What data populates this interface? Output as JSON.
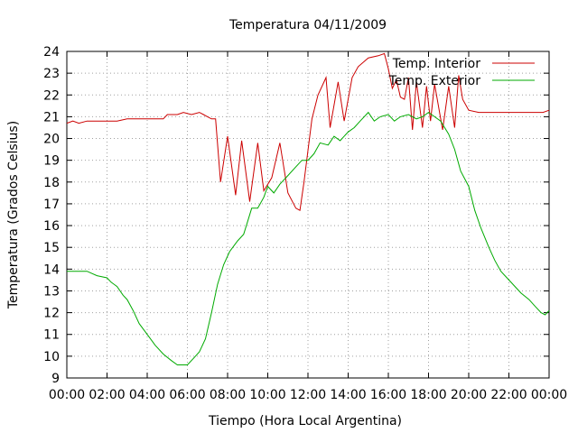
{
  "chart_data": {
    "type": "line",
    "title": "Temperatura 04/11/2009",
    "xlabel": "Tiempo (Hora Local Argentina)",
    "ylabel": "Temperatura (Grados Celsius)",
    "ylim": [
      9,
      24
    ],
    "xlim": [
      0,
      24
    ],
    "x_tick_labels": [
      "00:00",
      "02:00",
      "04:00",
      "06:00",
      "08:00",
      "10:00",
      "12:00",
      "14:00",
      "16:00",
      "18:00",
      "20:00",
      "22:00",
      "00:00"
    ],
    "y_ticks": [
      9,
      10,
      11,
      12,
      13,
      14,
      15,
      16,
      17,
      18,
      19,
      20,
      21,
      22,
      23,
      24
    ],
    "grid": true,
    "legend_position": "top-right",
    "series": [
      {
        "name": "Temp. Interior",
        "color": "#cc0000",
        "points": [
          [
            0,
            20.7
          ],
          [
            0.3,
            20.8
          ],
          [
            0.6,
            20.7
          ],
          [
            1,
            20.8
          ],
          [
            2,
            20.8
          ],
          [
            2.5,
            20.8
          ],
          [
            3,
            20.9
          ],
          [
            4,
            20.9
          ],
          [
            4.8,
            20.9
          ],
          [
            5,
            21.1
          ],
          [
            5.5,
            21.1
          ],
          [
            5.8,
            21.2
          ],
          [
            6.2,
            21.1
          ],
          [
            6.6,
            21.2
          ],
          [
            6.8,
            21.1
          ],
          [
            7.2,
            20.9
          ],
          [
            7.4,
            20.9
          ],
          [
            7.65,
            18.0
          ],
          [
            8.0,
            20.1
          ],
          [
            8.4,
            17.4
          ],
          [
            8.7,
            19.9
          ],
          [
            9.1,
            17.1
          ],
          [
            9.5,
            19.8
          ],
          [
            9.8,
            17.6
          ],
          [
            10.2,
            18.2
          ],
          [
            10.6,
            19.8
          ],
          [
            11.0,
            17.5
          ],
          [
            11.4,
            16.8
          ],
          [
            11.6,
            16.7
          ],
          [
            11.8,
            18.0
          ],
          [
            12.2,
            20.9
          ],
          [
            12.5,
            22.0
          ],
          [
            12.9,
            22.8
          ],
          [
            13.1,
            20.5
          ],
          [
            13.5,
            22.6
          ],
          [
            13.8,
            20.8
          ],
          [
            14.2,
            22.8
          ],
          [
            14.5,
            23.3
          ],
          [
            15,
            23.7
          ],
          [
            15.5,
            23.8
          ],
          [
            15.8,
            23.9
          ],
          [
            16.0,
            23.2
          ],
          [
            16.2,
            22.3
          ],
          [
            16.4,
            22.7
          ],
          [
            16.6,
            21.9
          ],
          [
            16.8,
            21.8
          ],
          [
            17.0,
            22.8
          ],
          [
            17.2,
            20.4
          ],
          [
            17.4,
            22.6
          ],
          [
            17.7,
            20.5
          ],
          [
            17.9,
            22.4
          ],
          [
            18.1,
            20.8
          ],
          [
            18.3,
            22.5
          ],
          [
            18.7,
            20.4
          ],
          [
            19.0,
            22.4
          ],
          [
            19.3,
            20.5
          ],
          [
            19.5,
            22.9
          ],
          [
            19.7,
            21.8
          ],
          [
            20.0,
            21.3
          ],
          [
            20.5,
            21.2
          ],
          [
            21,
            21.2
          ],
          [
            22,
            21.2
          ],
          [
            23,
            21.2
          ],
          [
            23.7,
            21.2
          ],
          [
            24,
            21.3
          ]
        ]
      },
      {
        "name": "Temp. Exterior",
        "color": "#00aa00",
        "points": [
          [
            0,
            13.9
          ],
          [
            0.5,
            13.9
          ],
          [
            1,
            13.9
          ],
          [
            1.5,
            13.7
          ],
          [
            2,
            13.6
          ],
          [
            2.2,
            13.4
          ],
          [
            2.5,
            13.2
          ],
          [
            2.8,
            12.8
          ],
          [
            3,
            12.6
          ],
          [
            3.3,
            12.1
          ],
          [
            3.6,
            11.5
          ],
          [
            4,
            11.0
          ],
          [
            4.4,
            10.5
          ],
          [
            4.8,
            10.1
          ],
          [
            5.2,
            9.8
          ],
          [
            5.5,
            9.6
          ],
          [
            5.8,
            9.6
          ],
          [
            6.0,
            9.6
          ],
          [
            6.3,
            9.9
          ],
          [
            6.6,
            10.2
          ],
          [
            6.9,
            10.8
          ],
          [
            7.2,
            12.0
          ],
          [
            7.5,
            13.3
          ],
          [
            7.8,
            14.2
          ],
          [
            8.1,
            14.8
          ],
          [
            8.5,
            15.3
          ],
          [
            8.8,
            15.6
          ],
          [
            9.0,
            16.2
          ],
          [
            9.2,
            16.8
          ],
          [
            9.5,
            16.8
          ],
          [
            9.8,
            17.3
          ],
          [
            10.0,
            17.8
          ],
          [
            10.3,
            17.5
          ],
          [
            10.6,
            17.9
          ],
          [
            11.0,
            18.3
          ],
          [
            11.4,
            18.7
          ],
          [
            11.7,
            19.0
          ],
          [
            12.0,
            19.0
          ],
          [
            12.3,
            19.3
          ],
          [
            12.6,
            19.8
          ],
          [
            13.0,
            19.7
          ],
          [
            13.3,
            20.1
          ],
          [
            13.6,
            19.9
          ],
          [
            14.0,
            20.3
          ],
          [
            14.3,
            20.5
          ],
          [
            14.6,
            20.8
          ],
          [
            15.0,
            21.2
          ],
          [
            15.3,
            20.8
          ],
          [
            15.6,
            21.0
          ],
          [
            16.0,
            21.1
          ],
          [
            16.3,
            20.8
          ],
          [
            16.6,
            21.0
          ],
          [
            17.0,
            21.1
          ],
          [
            17.4,
            20.9
          ],
          [
            17.7,
            21.0
          ],
          [
            18.0,
            21.2
          ],
          [
            18.3,
            21.0
          ],
          [
            18.6,
            20.8
          ],
          [
            19.0,
            20.2
          ],
          [
            19.3,
            19.5
          ],
          [
            19.6,
            18.5
          ],
          [
            20.0,
            17.8
          ],
          [
            20.3,
            16.7
          ],
          [
            20.6,
            15.9
          ],
          [
            21.0,
            15.0
          ],
          [
            21.3,
            14.4
          ],
          [
            21.6,
            13.9
          ],
          [
            22.0,
            13.5
          ],
          [
            22.3,
            13.2
          ],
          [
            22.6,
            12.9
          ],
          [
            23.0,
            12.6
          ],
          [
            23.3,
            12.3
          ],
          [
            23.6,
            12.0
          ],
          [
            23.8,
            11.9
          ],
          [
            24,
            12.1
          ]
        ]
      }
    ]
  }
}
